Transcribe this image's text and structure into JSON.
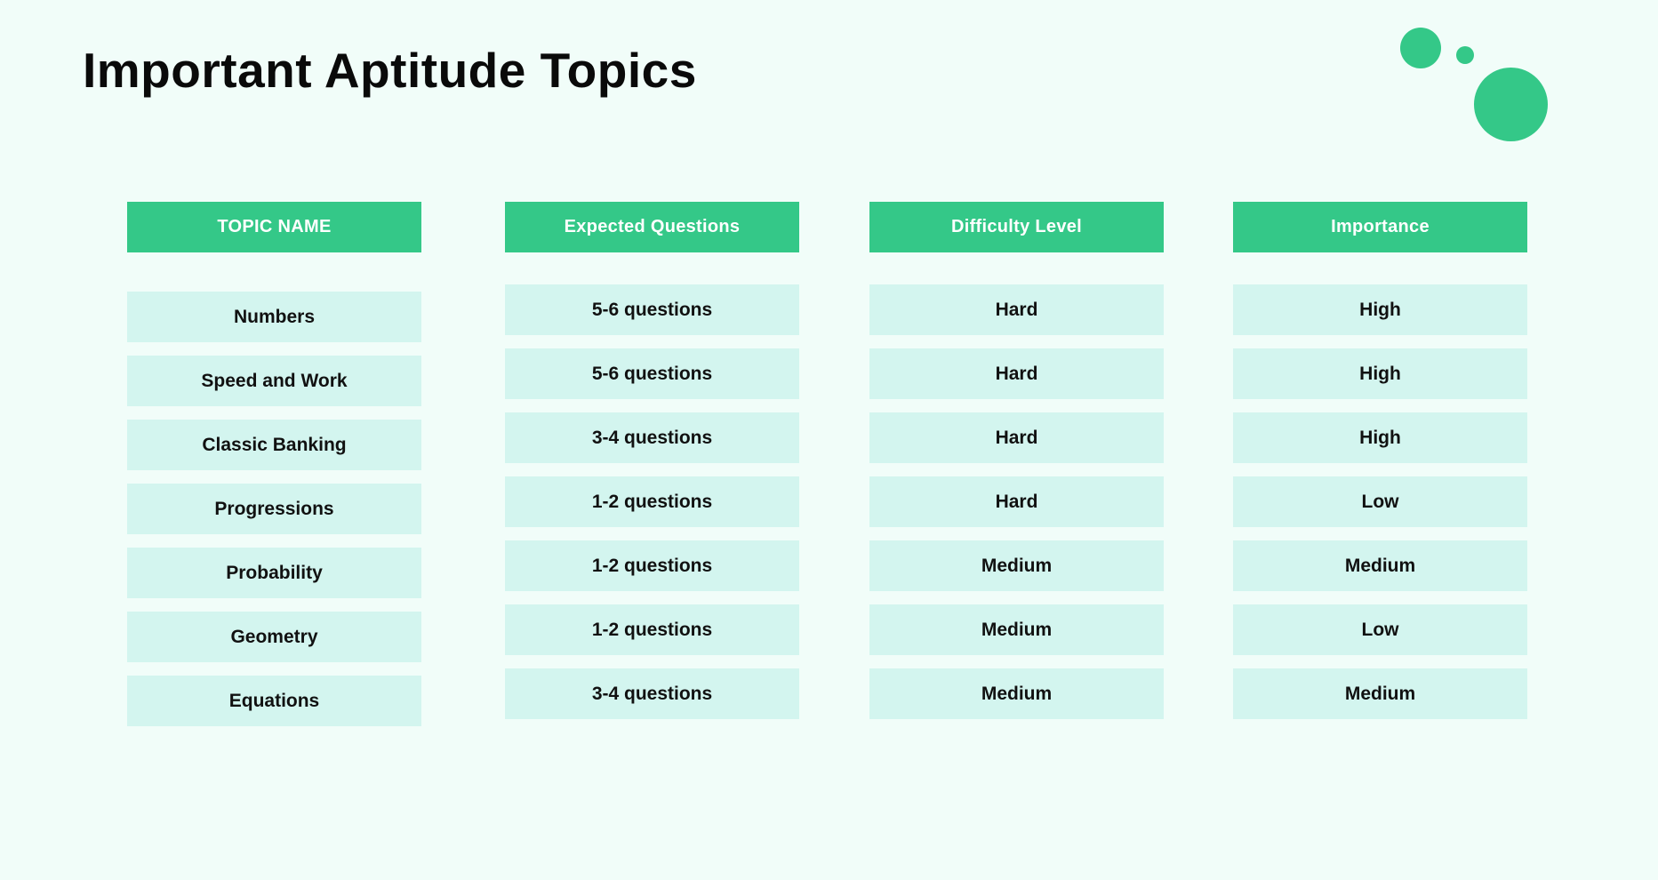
{
  "title": "Important Aptitude Topics",
  "colors": {
    "accent": "#34c888",
    "cell_bg": "#d3f5ef",
    "background": "#f1fdf9"
  },
  "table": {
    "columns": [
      {
        "header": "TOPIC NAME",
        "cells": [
          "Numbers",
          "Speed and Work",
          "Classic Banking",
          "Progressions",
          "Probability",
          "Geometry",
          "Equations"
        ]
      },
      {
        "header": "Expected Questions",
        "cells": [
          "5-6 questions",
          "5-6 questions",
          "3-4 questions",
          "1-2 questions",
          "1-2 questions",
          "1-2 questions",
          "3-4 questions"
        ]
      },
      {
        "header": "Difficulty Level",
        "cells": [
          "Hard",
          "Hard",
          "Hard",
          "Hard",
          "Medium",
          "Medium",
          "Medium"
        ]
      },
      {
        "header": "Importance",
        "cells": [
          "High",
          "High",
          "High",
          "Low",
          "Medium",
          "Low",
          "Medium"
        ]
      }
    ]
  }
}
